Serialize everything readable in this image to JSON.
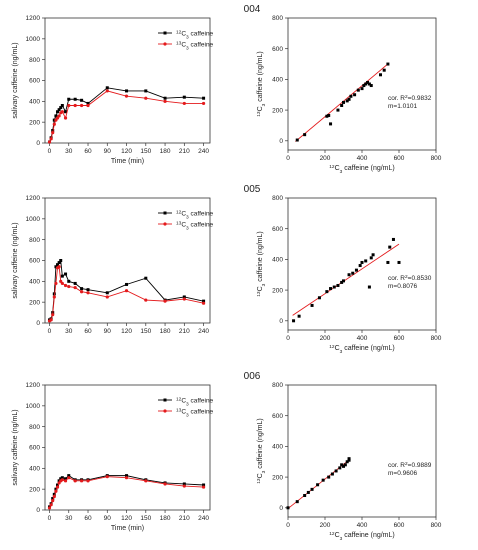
{
  "colors": {
    "c12": "#000000",
    "c13": "#e41a1c",
    "fit": "#e41a1c",
    "scatter": "#000000"
  },
  "panels": [
    {
      "title": "004",
      "time_chart": {
        "type": "line",
        "xlabel": "Time (min)",
        "ylabel": "salivary caffeine (ng/mL)",
        "xlim": [
          -7,
          250
        ],
        "ylim": [
          0,
          1200
        ],
        "xticks": [
          0,
          30,
          60,
          90,
          120,
          150,
          180,
          210,
          240
        ],
        "yticks": [
          0,
          200,
          400,
          600,
          800,
          1000,
          1200
        ],
        "series": [
          {
            "name": "12C3 caffeine",
            "label_pre": "",
            "label_sup": "12",
            "label_sub": "",
            "label_post": "C",
            "label_sub2": "3",
            "label_tail": " caffeine",
            "x": [
              0,
              2.5,
              5,
              7.5,
              10,
              12.5,
              15,
              17.5,
              20,
              25,
              30,
              40,
              50,
              60,
              90,
              120,
              150,
              180,
              210,
              240
            ],
            "y": [
              10,
              50,
              120,
              220,
              260,
              300,
              320,
              340,
              360,
              300,
              420,
              420,
              410,
              380,
              530,
              500,
              500,
              430,
              440,
              430
            ]
          },
          {
            "name": "13C3 caffeine",
            "label_pre": "",
            "label_sup": "13",
            "label_sub": "",
            "label_post": "C",
            "label_sub2": "3",
            "label_tail": " caffeine",
            "x": [
              0,
              2.5,
              5,
              7.5,
              10,
              12.5,
              15,
              17.5,
              20,
              25,
              30,
              40,
              50,
              60,
              90,
              120,
              150,
              180,
              210,
              240
            ],
            "y": [
              10,
              40,
              100,
              180,
              220,
              240,
              260,
              290,
              300,
              240,
              360,
              360,
              360,
              360,
              500,
              450,
              430,
              400,
              380,
              380
            ]
          }
        ]
      },
      "scatter_chart": {
        "type": "scatter",
        "xlabel_pre": "",
        "xlabel_sup": "12",
        "xlabel_mid": "C",
        "xlabel_sub": "3",
        "xlabel_tail": " caffeine (ng/mL)",
        "ylabel_pre": "",
        "ylabel_sup": "13",
        "ylabel_mid": "C",
        "ylabel_sub": "3",
        "ylabel_tail": " caffeine (ng/mL)",
        "xlim": [
          0,
          800
        ],
        "ylim": [
          -60,
          800
        ],
        "xticks": [
          0,
          200,
          400,
          600,
          800
        ],
        "yticks": [
          0,
          200,
          400,
          600,
          800
        ],
        "annotation_line1_pre": "cor. R",
        "annotation_line1_sup": "2",
        "annotation_line1_post": "=0.9832",
        "annotation_line2": "m=1.0101",
        "slope": 1.0101,
        "intercept": -45,
        "fit_range": [
          40,
          545
        ],
        "points": [
          [
            50,
            5
          ],
          [
            90,
            40
          ],
          [
            210,
            160
          ],
          [
            220,
            165
          ],
          [
            230,
            110
          ],
          [
            270,
            200
          ],
          [
            290,
            230
          ],
          [
            300,
            250
          ],
          [
            320,
            260
          ],
          [
            330,
            270
          ],
          [
            340,
            290
          ],
          [
            360,
            300
          ],
          [
            380,
            330
          ],
          [
            400,
            340
          ],
          [
            410,
            360
          ],
          [
            420,
            370
          ],
          [
            430,
            380
          ],
          [
            440,
            370
          ],
          [
            450,
            360
          ],
          [
            500,
            430
          ],
          [
            520,
            460
          ],
          [
            540,
            500
          ]
        ]
      }
    },
    {
      "title": "005",
      "time_chart": {
        "type": "line",
        "xlabel": "",
        "ylabel": "salivary caffeine (ng/mL)",
        "xlim": [
          -7,
          250
        ],
        "ylim": [
          0,
          1200
        ],
        "xticks": [
          0,
          30,
          60,
          90,
          120,
          150,
          180,
          210,
          240
        ],
        "yticks": [
          0,
          200,
          400,
          600,
          800,
          1000,
          1200
        ],
        "series": [
          {
            "name": "12C3 caffeine",
            "label_pre": "",
            "label_sup": "12",
            "label_sub": "",
            "label_post": "C",
            "label_sub2": "3",
            "label_tail": " caffeine",
            "x": [
              0,
              2.5,
              5,
              7.5,
              10,
              12.5,
              15,
              17.5,
              20,
              25,
              30,
              40,
              50,
              60,
              90,
              120,
              150,
              180,
              210,
              240
            ],
            "y": [
              30,
              40,
              100,
              280,
              540,
              560,
              580,
              600,
              450,
              470,
              400,
              380,
              330,
              320,
              290,
              370,
              430,
              220,
              250,
              210
            ]
          },
          {
            "name": "13C3 caffeine",
            "label_pre": "",
            "label_sup": "13",
            "label_sub": "",
            "label_post": "C",
            "label_sub2": "3",
            "label_tail": " caffeine",
            "x": [
              0,
              2.5,
              5,
              7.5,
              10,
              12.5,
              15,
              17.5,
              20,
              25,
              30,
              40,
              50,
              60,
              90,
              120,
              150,
              180,
              210,
              240
            ],
            "y": [
              20,
              30,
              80,
              250,
              380,
              530,
              540,
              400,
              380,
              360,
              350,
              340,
              300,
              290,
              250,
              310,
              220,
              210,
              230,
              190
            ]
          }
        ]
      },
      "scatter_chart": {
        "type": "scatter",
        "xlabel_pre": "",
        "xlabel_sup": "12",
        "xlabel_mid": "C",
        "xlabel_sub": "3",
        "xlabel_tail": " caffeine (ng/mL)",
        "ylabel_pre": "",
        "ylabel_sup": "13",
        "ylabel_mid": "C",
        "ylabel_sub": "3",
        "ylabel_tail": " caffeine (ng/mL)",
        "xlim": [
          0,
          800
        ],
        "ylim": [
          -60,
          800
        ],
        "xticks": [
          0,
          200,
          400,
          600,
          800
        ],
        "yticks": [
          0,
          200,
          400,
          600,
          800
        ],
        "annotation_line1_pre": "cor. R",
        "annotation_line1_sup": "2",
        "annotation_line1_post": "=0.8530",
        "annotation_line2": "m=0.8076",
        "slope": 0.8076,
        "intercept": 15,
        "fit_range": [
          25,
          600
        ],
        "points": [
          [
            30,
            0
          ],
          [
            60,
            30
          ],
          [
            130,
            100
          ],
          [
            170,
            150
          ],
          [
            210,
            190
          ],
          [
            230,
            210
          ],
          [
            250,
            220
          ],
          [
            270,
            230
          ],
          [
            290,
            250
          ],
          [
            300,
            260
          ],
          [
            330,
            300
          ],
          [
            350,
            310
          ],
          [
            370,
            330
          ],
          [
            390,
            360
          ],
          [
            400,
            380
          ],
          [
            420,
            390
          ],
          [
            440,
            220
          ],
          [
            450,
            410
          ],
          [
            460,
            430
          ],
          [
            540,
            380
          ],
          [
            550,
            480
          ],
          [
            570,
            530
          ],
          [
            600,
            380
          ]
        ]
      }
    },
    {
      "title": "006",
      "time_chart": {
        "type": "line",
        "xlabel": "Time (min)",
        "ylabel": "salivary caffeine (ng/mL)",
        "xlim": [
          -7,
          250
        ],
        "ylim": [
          0,
          1200
        ],
        "xticks": [
          0,
          30,
          60,
          90,
          120,
          150,
          180,
          210,
          240
        ],
        "yticks": [
          0,
          200,
          400,
          600,
          800,
          1000,
          1200
        ],
        "series": [
          {
            "name": "12C3 caffeine",
            "label_pre": "",
            "label_sup": "12",
            "label_sub": "",
            "label_post": "C",
            "label_sub2": "3",
            "label_tail": " caffeine",
            "x": [
              0,
              2.5,
              5,
              7.5,
              10,
              12.5,
              15,
              17.5,
              20,
              25,
              30,
              40,
              50,
              60,
              90,
              120,
              150,
              180,
              210,
              240
            ],
            "y": [
              30,
              60,
              110,
              150,
              200,
              240,
              280,
              300,
              310,
              300,
              330,
              290,
              290,
              290,
              330,
              330,
              290,
              260,
              250,
              240
            ]
          },
          {
            "name": "13C3 caffeine",
            "label_pre": "",
            "label_sup": "13",
            "label_sub": "",
            "label_post": "C",
            "label_sub2": "3",
            "label_tail": " caffeine",
            "x": [
              0,
              2.5,
              5,
              7.5,
              10,
              12.5,
              15,
              17.5,
              20,
              25,
              30,
              40,
              50,
              60,
              90,
              120,
              150,
              180,
              210,
              240
            ],
            "y": [
              20,
              50,
              90,
              130,
              180,
              220,
              260,
              280,
              290,
              280,
              310,
              280,
              280,
              280,
              320,
              310,
              280,
              250,
              230,
              220
            ]
          }
        ]
      },
      "scatter_chart": {
        "type": "scatter",
        "xlabel_pre": "",
        "xlabel_sup": "12",
        "xlabel_mid": "C",
        "xlabel_sub": "3",
        "xlabel_tail": " caffeine (ng/mL)",
        "ylabel_pre": "",
        "ylabel_sup": "13",
        "ylabel_mid": "C",
        "ylabel_sub": "3",
        "ylabel_tail": " caffeine (ng/mL)",
        "xlim": [
          0,
          800
        ],
        "ylim": [
          -60,
          800
        ],
        "xticks": [
          0,
          200,
          400,
          600,
          800
        ],
        "yticks": [
          0,
          200,
          400,
          600,
          800
        ],
        "annotation_line1_pre": "cor. R",
        "annotation_line1_sup": "2",
        "annotation_line1_post": "=0.9889",
        "annotation_line2": "m=0.9606",
        "slope": 0.9606,
        "intercept": -5,
        "fit_range": [
          0,
          335
        ],
        "points": [
          [
            0,
            0
          ],
          [
            50,
            40
          ],
          [
            90,
            80
          ],
          [
            110,
            100
          ],
          [
            130,
            120
          ],
          [
            160,
            150
          ],
          [
            190,
            180
          ],
          [
            220,
            200
          ],
          [
            240,
            220
          ],
          [
            260,
            240
          ],
          [
            280,
            260
          ],
          [
            290,
            280
          ],
          [
            300,
            270
          ],
          [
            310,
            280
          ],
          [
            320,
            300
          ],
          [
            330,
            320
          ],
          [
            330,
            310
          ]
        ]
      }
    }
  ]
}
